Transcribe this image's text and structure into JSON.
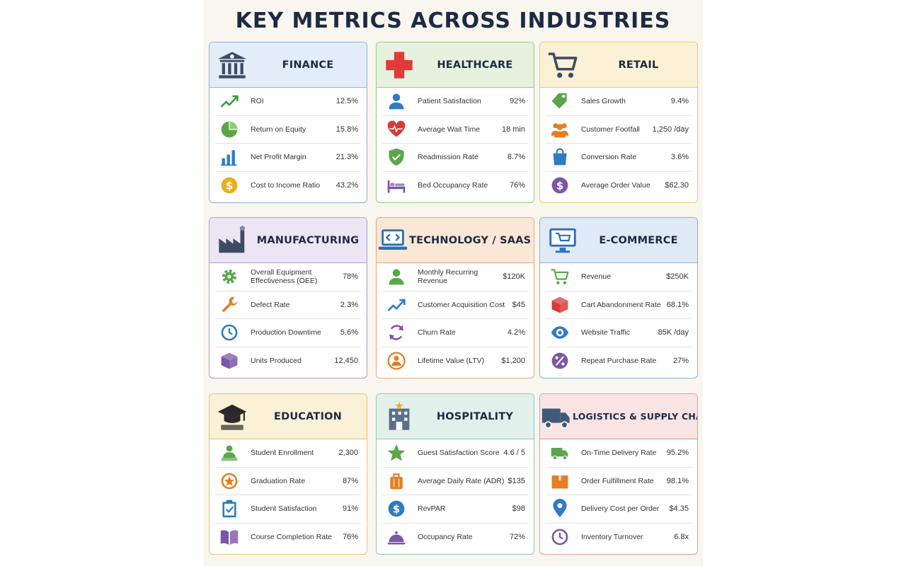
{
  "title": "KEY METRICS ACROSS INDUSTRIES",
  "cards": [
    {
      "title": "FINANCE",
      "icon": "bank-icon",
      "bg": "#e3edf8",
      "border": "#8fb1d8",
      "metrics": [
        {
          "label": "ROI",
          "value": "12.5%",
          "icon": "trend-up-icon",
          "color": "#3d9a3d"
        },
        {
          "label": "Return on Equity",
          "value": "15.8%",
          "icon": "pie-chart-icon",
          "color": "#5aa64a"
        },
        {
          "label": "Net Profit Margin",
          "value": "21.3%",
          "icon": "bar-chart-icon",
          "color": "#2f7bc4"
        },
        {
          "label": "Cost to Income Ratio",
          "value": "43.2%",
          "icon": "dollar-coin-icon",
          "color": "#e8b020"
        }
      ]
    },
    {
      "title": "HEALTHCARE",
      "icon": "medical-cross-icon",
      "bg": "#e6f1de",
      "border": "#9cc887",
      "metrics": [
        {
          "label": "Patient Satisfaction",
          "value": "92%",
          "icon": "person-icon",
          "color": "#2f7bc4"
        },
        {
          "label": "Average Wait Time",
          "value": "18 min",
          "icon": "heart-pulse-icon",
          "color": "#d93b35"
        },
        {
          "label": "Readmission Rate",
          "value": "8.7%",
          "icon": "shield-check-icon",
          "color": "#5aa64a"
        },
        {
          "label": "Bed Occupancy Rate",
          "value": "76%",
          "icon": "bed-icon",
          "color": "#7a55a8"
        }
      ]
    },
    {
      "title": "RETAIL",
      "icon": "shopping-cart-icon",
      "bg": "#fbf1d7",
      "border": "#e8c870",
      "metrics": [
        {
          "label": "Sales Growth",
          "value": "9.4%",
          "icon": "price-tag-icon",
          "color": "#5aa64a"
        },
        {
          "label": "Customer Footfall",
          "value": "1,250 /day",
          "icon": "people-icon",
          "color": "#e67e22"
        },
        {
          "label": "Conversion Rate",
          "value": "3.6%",
          "icon": "shopping-bag-icon",
          "color": "#2f7bc4"
        },
        {
          "label": "Average Order Value",
          "value": "$62.30",
          "icon": "dollar-coin-icon",
          "color": "#7a55a8"
        }
      ]
    },
    {
      "title": "MANUFACTURING",
      "icon": "factory-icon",
      "bg": "#ece5f4",
      "border": "#b39ad3",
      "metrics": [
        {
          "label": "Overall Equipment Effectiveness (OEE)",
          "value": "78%",
          "icon": "gear-icon",
          "color": "#5aa64a"
        },
        {
          "label": "Defect Rate",
          "value": "2.3%",
          "icon": "wrench-icon",
          "color": "#e67e22"
        },
        {
          "label": "Production Downtime",
          "value": "5.6%",
          "icon": "clock-icon",
          "color": "#2f7bc4"
        },
        {
          "label": "Units Produced",
          "value": "12,450",
          "icon": "box-icon",
          "color": "#7a55a8"
        }
      ]
    },
    {
      "title": "TECHNOLOGY / SAAS",
      "icon": "laptop-code-icon",
      "bg": "#fbe7d6",
      "border": "#eba878",
      "metrics": [
        {
          "label": "Monthly Recurring Revenue",
          "value": "$120K",
          "icon": "person-icon",
          "color": "#5aa64a"
        },
        {
          "label": "Customer Acquisition Cost",
          "value": "$45",
          "icon": "trend-up-icon",
          "color": "#2f7bc4"
        },
        {
          "label": "Churn Rate",
          "value": "4.2%",
          "icon": "refresh-icon",
          "color": "#7a55a8"
        },
        {
          "label": "Lifetime Value (LTV)",
          "value": "$1,200",
          "icon": "user-circle-icon",
          "color": "#e67e22"
        }
      ]
    },
    {
      "title": "E-COMMERCE",
      "icon": "monitor-cart-icon",
      "bg": "#dfeaf6",
      "border": "#8fb1d8",
      "metrics": [
        {
          "label": "Revenue",
          "value": "$250K",
          "icon": "shopping-cart-icon",
          "color": "#5aa64a"
        },
        {
          "label": "Cart Abandonment Rate",
          "value": "68.1%",
          "icon": "cube-icon",
          "color": "#d93b35"
        },
        {
          "label": "Website Traffic",
          "value": "85K /day",
          "icon": "eye-icon",
          "color": "#2f7bc4"
        },
        {
          "label": "Repeat Purchase Rate",
          "value": "27%",
          "icon": "percent-icon",
          "color": "#7a55a8"
        }
      ]
    },
    {
      "title": "EDUCATION",
      "icon": "graduation-cap-icon",
      "bg": "#fbf1d7",
      "border": "#e8c870",
      "metrics": [
        {
          "label": "Student Enrollment",
          "value": "2,300",
          "icon": "student-icon",
          "color": "#5aa64a"
        },
        {
          "label": "Graduation Rate",
          "value": "87%",
          "icon": "star-badge-icon",
          "color": "#e67e22"
        },
        {
          "label": "Student Satisfaction",
          "value": "91%",
          "icon": "clipboard-check-icon",
          "color": "#2f7bc4"
        },
        {
          "label": "Course Completion Rate",
          "value": "76%",
          "icon": "book-icon",
          "color": "#7a55a8"
        }
      ]
    },
    {
      "title": "HOSPITALITY",
      "icon": "hotel-icon",
      "bg": "#e2f0ec",
      "border": "#93c8b4",
      "metrics": [
        {
          "label": "Guest Satisfaction Score",
          "value": "4.6 / 5",
          "icon": "star-icon",
          "color": "#5aa64a"
        },
        {
          "label": "Average Daily Rate (ADR)",
          "value": "$135",
          "icon": "luggage-icon",
          "color": "#e67e22"
        },
        {
          "label": "RevPAR",
          "value": "$98",
          "icon": "dollar-coin-icon",
          "color": "#2f7bc4"
        },
        {
          "label": "Occupancy Rate",
          "value": "72%",
          "icon": "service-bell-icon",
          "color": "#7a55a8"
        }
      ]
    },
    {
      "title": "LOGISTICS & SUPPLY CHAIN",
      "icon": "truck-icon",
      "bg": "#f9e3e3",
      "border": "#e49a9a",
      "metrics": [
        {
          "label": "On-Time Delivery Rate",
          "value": "95.2%",
          "icon": "truck-icon",
          "color": "#5aa64a"
        },
        {
          "label": "Order Fulfillment Rate",
          "value": "98.1%",
          "icon": "package-icon",
          "color": "#e67e22"
        },
        {
          "label": "Delivery Cost per Order",
          "value": "$4.35",
          "icon": "location-pin-icon",
          "color": "#2f7bc4"
        },
        {
          "label": "Inventory Turnover",
          "value": "6.8x",
          "icon": "clock-icon",
          "color": "#7a55a8"
        }
      ]
    }
  ]
}
